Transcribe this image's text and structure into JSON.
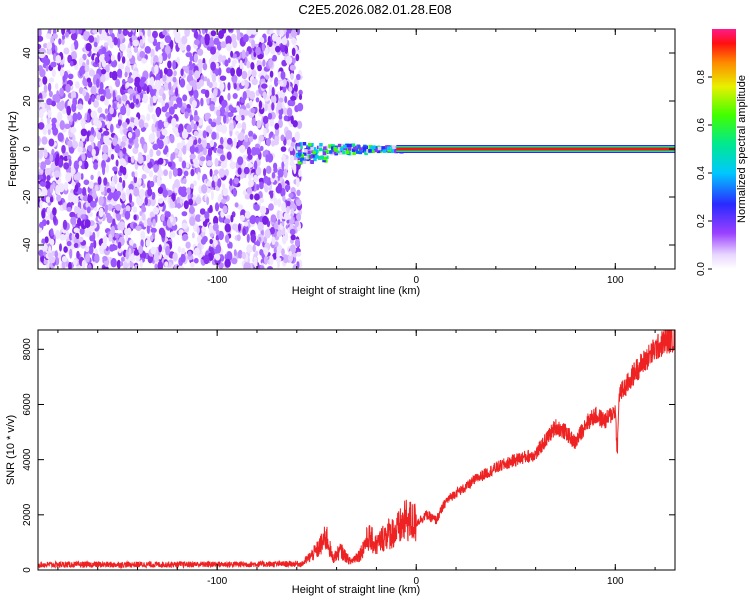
{
  "chart_data": [
    {
      "type": "heatmap",
      "title": "C2E5.2026.082.01.28.E08",
      "xlabel": "Height of straight line (km)",
      "ylabel": "Frequency (Hz)",
      "xlim": [
        -190,
        130
      ],
      "ylim": [
        -50,
        50
      ],
      "xticks": [
        -100,
        0,
        100
      ],
      "xtick_labels": [
        "-100",
        "0",
        "100"
      ],
      "yticks": [
        -40,
        -20,
        0,
        20,
        40
      ],
      "ytick_labels": [
        "-40",
        "-20",
        "0",
        "20",
        "40"
      ],
      "noise_region_km": [
        -190,
        -58
      ],
      "carrier_frequency_hz": 0,
      "colorbar": {
        "label": "Normalized spectral amplitude",
        "range": [
          0,
          1
        ],
        "ticks": [
          0,
          0.2,
          0.4,
          0.6,
          0.8
        ],
        "tick_labels": [
          "0.0",
          "0.2",
          "0.4",
          "0.6",
          "0.8"
        ]
      }
    },
    {
      "type": "line",
      "xlabel": "Height of straight line (km)",
      "ylabel": "SNR (10 * v/v)",
      "xlim": [
        -190,
        130
      ],
      "ylim": [
        0,
        8700
      ],
      "xticks": [
        -100,
        0,
        100
      ],
      "xtick_labels": [
        "-100",
        "0",
        "100"
      ],
      "yticks": [
        0,
        2000,
        4000,
        6000,
        8000
      ],
      "ytick_labels": [
        "0",
        "2000",
        "4000",
        "6000",
        "8000"
      ],
      "series": [
        {
          "name": "SNR",
          "color": "#ee2222",
          "x": [
            -190,
            -150,
            -100,
            -70,
            -58,
            -50,
            -45,
            -42,
            -38,
            -33,
            -28,
            -24,
            -20,
            -15,
            -10,
            -5,
            0,
            5,
            10,
            15,
            20,
            25,
            30,
            40,
            50,
            60,
            65,
            70,
            75,
            80,
            85,
            90,
            95,
            100,
            101,
            102,
            105,
            110,
            115,
            120,
            125,
            130
          ],
          "y": [
            150,
            150,
            160,
            170,
            180,
            700,
            1200,
            400,
            700,
            300,
            600,
            1200,
            900,
            1300,
            1400,
            1800,
            1700,
            2000,
            1800,
            2500,
            2800,
            3000,
            3300,
            3700,
            4000,
            4200,
            4700,
            5200,
            5000,
            4600,
            5300,
            5600,
            5400,
            5800,
            4200,
            6400,
            6600,
            7200,
            7600,
            8000,
            8300,
            8400
          ]
        }
      ]
    }
  ],
  "colors": {
    "purple_deep": "#7a1fe6",
    "purple_light": "#d9b8ff",
    "line_red": "#ee2222"
  }
}
